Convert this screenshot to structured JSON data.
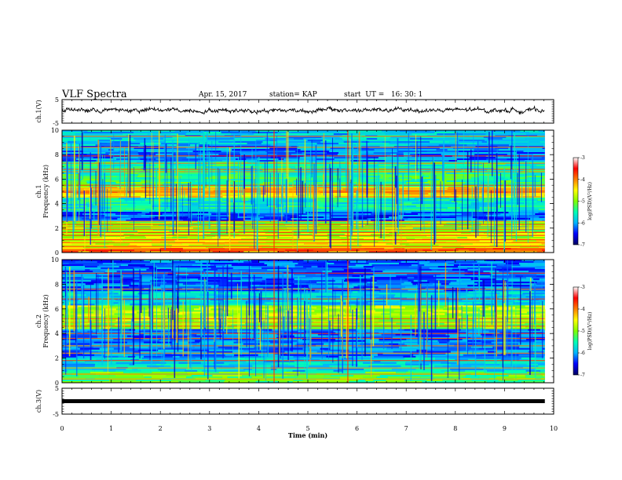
{
  "header": {
    "title": "VLF Spectra",
    "date": "Apr. 15, 2017",
    "station": "station= KAP",
    "start_ut": "start  UT =   16: 30: 1"
  },
  "chart_data": {
    "type": "heatmap",
    "x_label": "Time  (min)",
    "x_range": [
      0,
      10
    ],
    "x_ticks": [
      "0",
      "1",
      "2",
      "3",
      "4",
      "5",
      "6",
      "7",
      "8",
      "9",
      "10"
    ],
    "data_end_min": 9.82,
    "panels": [
      {
        "name": "ch1_waveform",
        "type": "line",
        "ylabel": "ch.1(V)",
        "ylim": [
          -5,
          5
        ],
        "yticks": [
          "5",
          "-5"
        ],
        "trace_level_v": 0.5,
        "trace_amplitude_v": 1.2
      },
      {
        "name": "ch1_spectrogram",
        "type": "heatmap",
        "ylabel_top": "ch.1",
        "ylabel": "Frequency  (kHz)",
        "ylim": [
          0,
          10
        ],
        "yticks": [
          "0",
          "2",
          "4",
          "6",
          "8",
          "10"
        ],
        "colorbar": {
          "label": "log(PSD)(V²/Hz)",
          "range": [
            -7,
            -3
          ],
          "ticks": [
            "-3",
            "-4",
            "-5",
            "-6",
            "-7"
          ],
          "colors": [
            "#000060",
            "#0000ff",
            "#00b4ff",
            "#00ffb4",
            "#80ff00",
            "#ffff00",
            "#ff8000",
            "#ff0000",
            "#ffffff"
          ]
        },
        "bands_khz": [
          {
            "lo": 0.0,
            "hi": 0.35,
            "level": 0.75
          },
          {
            "lo": 0.35,
            "hi": 1.2,
            "level": 0.6
          },
          {
            "lo": 1.2,
            "hi": 1.7,
            "level": 0.55
          },
          {
            "lo": 1.7,
            "hi": 2.6,
            "level": 0.5
          },
          {
            "lo": 2.6,
            "hi": 3.3,
            "level": 0.18
          },
          {
            "lo": 3.3,
            "hi": 4.5,
            "level": 0.35
          },
          {
            "lo": 4.5,
            "hi": 5.4,
            "level": 0.65
          },
          {
            "lo": 5.4,
            "hi": 6.4,
            "level": 0.42
          },
          {
            "lo": 6.4,
            "hi": 7.4,
            "level": 0.38
          },
          {
            "lo": 7.4,
            "hi": 8.7,
            "level": 0.22
          },
          {
            "lo": 8.7,
            "hi": 10.0,
            "level": 0.28
          }
        ],
        "lines_khz": [
          0.2,
          0.5,
          0.8,
          1.05,
          1.4,
          1.65,
          1.9,
          2.1,
          2.3,
          2.55,
          4.95,
          5.1,
          5.25,
          5.5,
          6.6,
          6.8,
          7.3,
          7.9,
          8.6,
          9.5
        ]
      },
      {
        "name": "ch2_spectrogram",
        "type": "heatmap",
        "ylabel_top": "ch.2",
        "ylabel": "Frequency  (kHz)",
        "ylim": [
          0,
          10
        ],
        "yticks": [
          "0",
          "2",
          "4",
          "6",
          "8",
          "10"
        ],
        "colorbar": {
          "label": "log(PSD)(V²/Hz)",
          "range": [
            -7,
            -3
          ],
          "ticks": [
            "-3",
            "-4",
            "-5",
            "-6",
            "-7"
          ],
          "colors": [
            "#000060",
            "#0000ff",
            "#00b4ff",
            "#00ffb4",
            "#80ff00",
            "#ffff00",
            "#ff8000",
            "#ff0000",
            "#ffffff"
          ]
        },
        "bands_khz": [
          {
            "lo": 0.0,
            "hi": 0.9,
            "level": 0.45
          },
          {
            "lo": 0.9,
            "hi": 2.0,
            "level": 0.3
          },
          {
            "lo": 2.0,
            "hi": 3.4,
            "level": 0.22
          },
          {
            "lo": 3.4,
            "hi": 4.3,
            "level": 0.2
          },
          {
            "lo": 4.3,
            "hi": 5.0,
            "level": 0.5
          },
          {
            "lo": 5.0,
            "hi": 6.3,
            "level": 0.55
          },
          {
            "lo": 6.3,
            "hi": 7.5,
            "level": 0.3
          },
          {
            "lo": 7.5,
            "hi": 10.0,
            "level": 0.2
          }
        ],
        "lines_khz": [
          0.3,
          0.7,
          1.2,
          1.8,
          2.4,
          3.0,
          3.6,
          4.0,
          4.6,
          4.9,
          5.2,
          6.8,
          7.6,
          8.9
        ]
      },
      {
        "name": "ch3_waveform",
        "type": "line",
        "ylabel": "ch.3(V)",
        "ylim": [
          -5,
          5
        ],
        "yticks": [
          "5",
          "-5"
        ],
        "trace_level_v": 0.0,
        "trace_amplitude_v": 0.0
      }
    ]
  }
}
